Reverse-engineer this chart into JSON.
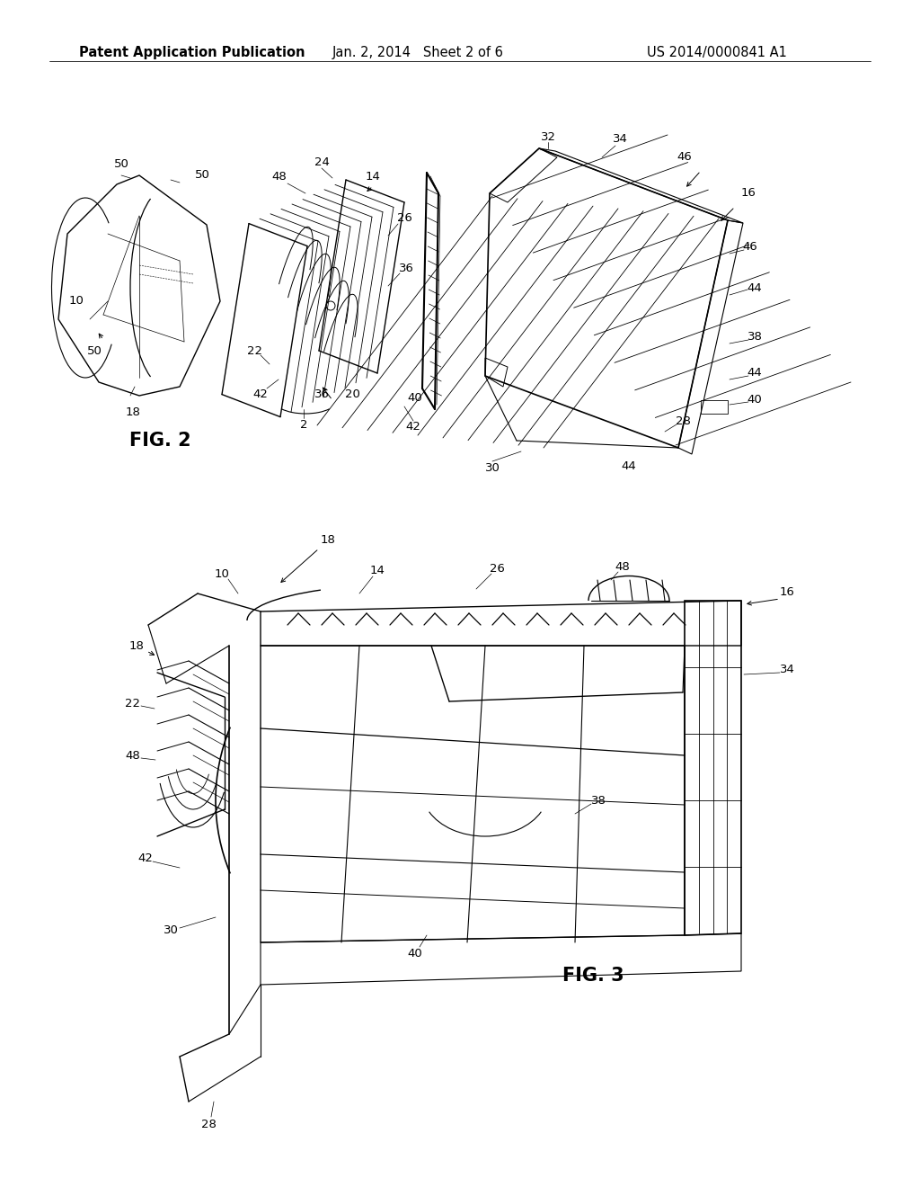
{
  "bg_color": "#ffffff",
  "header_left": "Patent Application Publication",
  "header_mid": "Jan. 2, 2014   Sheet 2 of 6",
  "header_right": "US 2014/0000841 A1",
  "fig2_label": "FIG. 2",
  "fig3_label": "FIG. 3",
  "line_color": "#000000",
  "header_fontsize": 10.5,
  "label_fontsize": 9.5,
  "fig_label_fontsize": 15
}
